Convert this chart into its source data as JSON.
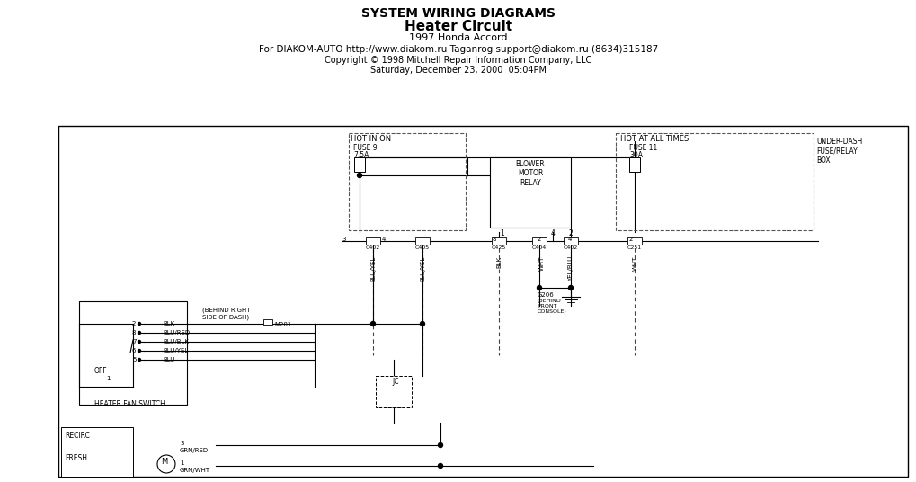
{
  "title_line1": "SYSTEM WIRING DIAGRAMS",
  "title_line2": "Heater Circuit",
  "title_line3": "1997 Honda Accord",
  "title_line4": "For DIAKOM-AUTO http://www.diakom.ru Taganrog support@diakom.ru (8634)315187",
  "title_line5": "Copyright © 1998 Mitchell Repair Information Company, LLC",
  "title_line6": "Saturday, December 23, 2000  05:04PM",
  "bg_color": "#ffffff",
  "diagram_bg": "#f8f8f8",
  "line_color": "#000000",
  "dashed_color": "#555555",
  "text_color": "#000000"
}
